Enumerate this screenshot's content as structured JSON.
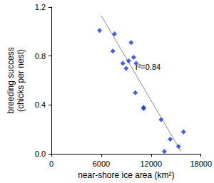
{
  "chart_data": {
    "type": "scatter",
    "xlabel": "near-shore ice area (km²)",
    "ylabel": "breeding success\n(chicks per nest)",
    "annotation": "r²=0.84",
    "x": [
      5800,
      7400,
      7600,
      8600,
      9000,
      9300,
      9600,
      9900,
      10100,
      10200,
      11100,
      11100,
      13200,
      13600,
      14300,
      15300,
      15900
    ],
    "values": [
      1.01,
      0.84,
      0.98,
      0.74,
      0.7,
      0.76,
      0.91,
      0.79,
      0.5,
      0.74,
      0.38,
      0.37,
      0.28,
      0.02,
      0.12,
      0.06,
      0.18
    ],
    "color": "#1a33e6",
    "marker": "diamond",
    "fit": {
      "x": [
        6000,
        15600
      ],
      "values": [
        1.13,
        0.02
      ],
      "color": "#888888"
    },
    "xlim": [
      0,
      18000
    ],
    "xticks": [
      0,
      6000,
      12000,
      18000
    ],
    "ylim": [
      0,
      1.2
    ],
    "yticks": [
      {
        "value": 0,
        "label": "0.0"
      },
      0.4,
      0.8,
      1.2
    ],
    "grid": false
  }
}
